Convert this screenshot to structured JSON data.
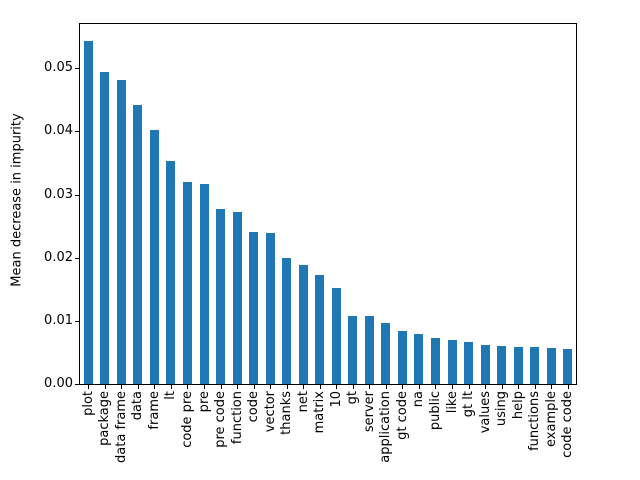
{
  "figure": {
    "background": "#ffffff",
    "axes_color": "#000000"
  },
  "chart_data": {
    "type": "bar",
    "title": "",
    "xlabel": "",
    "ylabel": "Mean decrease in impurity",
    "legend": null,
    "grid": false,
    "bar_color": "#1f77b4",
    "ylim": [
      0,
      0.057
    ],
    "yticks": [
      0,
      0.01,
      0.02,
      0.03,
      0.04,
      0.05
    ],
    "ytick_labels": [
      "0.00",
      "0.01",
      "0.02",
      "0.03",
      "0.04",
      "0.05"
    ],
    "categories": [
      "plot",
      "package",
      "data frame",
      "data",
      "frame",
      "lt",
      "code pre",
      "pre",
      "pre code",
      "function",
      "code",
      "vector",
      "thanks",
      "net",
      "matrix",
      "10",
      "gt",
      "server",
      "application",
      "gt code",
      "na",
      "public",
      "like",
      "gt lt",
      "values",
      "using",
      "help",
      "functions",
      "example",
      "code code"
    ],
    "values": [
      0.0543,
      0.0494,
      0.0481,
      0.0442,
      0.0403,
      0.0353,
      0.032,
      0.0317,
      0.0277,
      0.0272,
      0.0241,
      0.0239,
      0.02,
      0.0188,
      0.0172,
      0.0152,
      0.0108,
      0.0107,
      0.0097,
      0.0084,
      0.0079,
      0.0073,
      0.007,
      0.0066,
      0.0062,
      0.0061,
      0.0058,
      0.0058,
      0.0057,
      0.0055
    ]
  }
}
